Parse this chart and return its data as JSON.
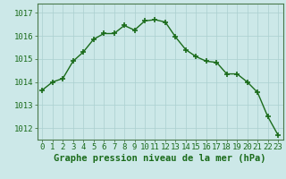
{
  "x": [
    0,
    1,
    2,
    3,
    4,
    5,
    6,
    7,
    8,
    9,
    10,
    11,
    12,
    13,
    14,
    15,
    16,
    17,
    18,
    19,
    20,
    21,
    22,
    23
  ],
  "y": [
    1013.65,
    1014.0,
    1014.15,
    1014.9,
    1015.3,
    1015.85,
    1016.1,
    1016.1,
    1016.45,
    1016.25,
    1016.65,
    1016.7,
    1016.6,
    1015.95,
    1015.4,
    1015.1,
    1014.9,
    1014.85,
    1014.35,
    1014.35,
    1014.0,
    1013.55,
    1012.5,
    1011.7
  ],
  "line_color": "#1a6b1a",
  "marker": "+",
  "marker_size": 4,
  "marker_linewidth": 1.2,
  "line_width": 1.0,
  "bg_color": "#cce8e8",
  "grid_major_color": "#aacfcf",
  "grid_minor_color": "#c0dcdc",
  "xlabel": "Graphe pression niveau de la mer (hPa)",
  "xlabel_fontsize": 7.5,
  "ylabel_ticks": [
    1012,
    1013,
    1014,
    1015,
    1016,
    1017
  ],
  "xlim": [
    -0.5,
    23.5
  ],
  "ylim": [
    1011.5,
    1017.4
  ],
  "xtick_labels": [
    "0",
    "1",
    "2",
    "3",
    "4",
    "5",
    "6",
    "7",
    "8",
    "9",
    "10",
    "11",
    "12",
    "13",
    "14",
    "15",
    "16",
    "17",
    "18",
    "19",
    "20",
    "21",
    "22",
    "23"
  ],
  "tick_color": "#1a6b1a",
  "tick_fontsize": 6.5,
  "border_color": "#4a7a4a",
  "bottom_bar_color": "#2a5a2a",
  "bottom_bar_height": 0.18
}
